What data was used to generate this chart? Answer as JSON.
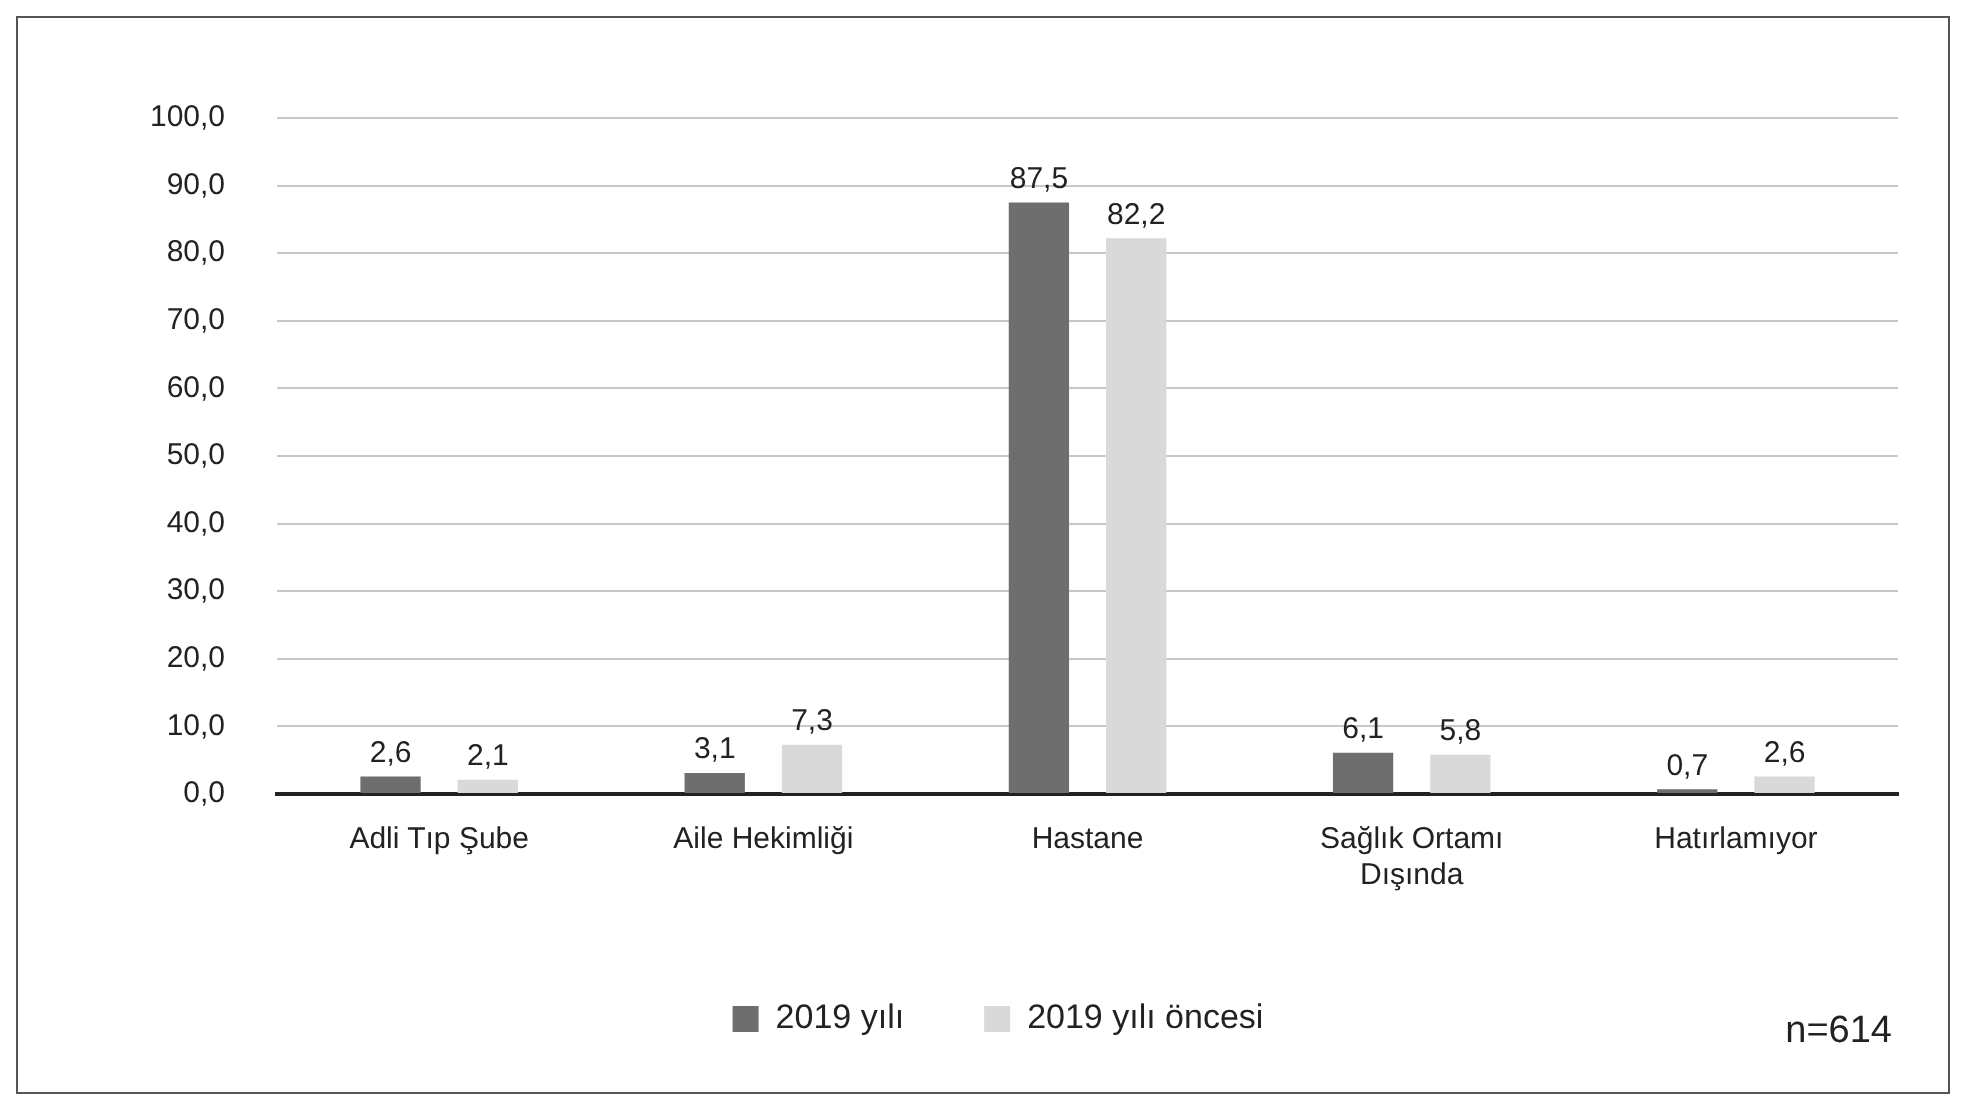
{
  "chart_data": {
    "type": "bar",
    "categories": [
      "Adli Tıp Şube",
      "Aile Hekimliği",
      "Hastane",
      "Sağlık Ortamı Dışında",
      "Hatırlamıyor"
    ],
    "series": [
      {
        "name": "2019 yılı",
        "color": "#6e6e6e",
        "values": [
          2.6,
          3.1,
          87.5,
          6.1,
          0.7
        ],
        "value_labels": [
          "2,6",
          "3,1",
          "87,5",
          "6,1",
          "0,7"
        ]
      },
      {
        "name": "2019 yılı öncesi",
        "color": "#d9d9d9",
        "values": [
          2.1,
          7.3,
          82.2,
          5.8,
          2.6
        ],
        "value_labels": [
          "2,1",
          "7,3",
          "82,2",
          "5,8",
          "2,6"
        ]
      }
    ],
    "ylim": [
      0,
      100
    ],
    "yticks": [
      {
        "value": 0,
        "label": "0,0"
      },
      {
        "value": 10,
        "label": "10,0"
      },
      {
        "value": 20,
        "label": "20,0"
      },
      {
        "value": 30,
        "label": "30,0"
      },
      {
        "value": 40,
        "label": "40,0"
      },
      {
        "value": 50,
        "label": "50,0"
      },
      {
        "value": 60,
        "label": "60,0"
      },
      {
        "value": 70,
        "label": "70,0"
      },
      {
        "value": 80,
        "label": "80,0"
      },
      {
        "value": 90,
        "label": "90,0"
      },
      {
        "value": 100,
        "label": "100,0"
      }
    ],
    "grid": "y",
    "legend": "bottom",
    "annotations": [
      "n=614"
    ]
  }
}
